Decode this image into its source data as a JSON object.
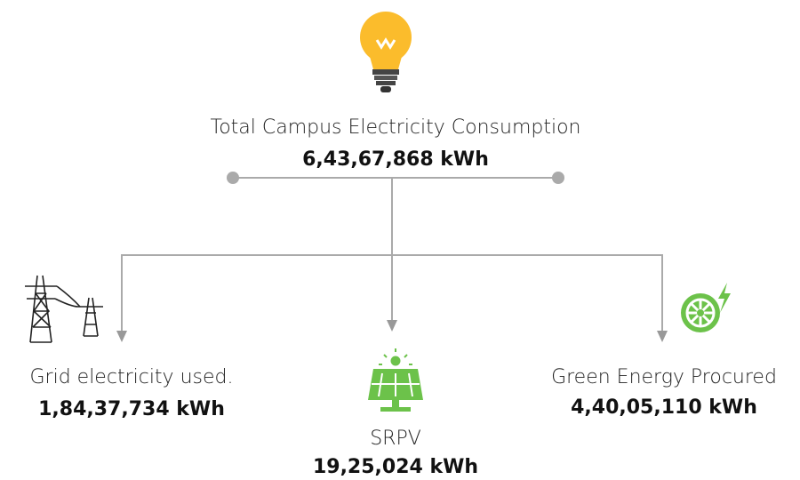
{
  "root": {
    "label": "Total Campus Electricity Consumption",
    "value": "6,43,67,868 kWh"
  },
  "children": [
    {
      "label": "Grid electricity used.",
      "value": "1,84,37,734 kWh"
    },
    {
      "label": "SRPV",
      "value": "19,25,024 kWh"
    },
    {
      "label": "Green Energy Procured",
      "value": "4,40,05,110 kWh"
    }
  ]
}
